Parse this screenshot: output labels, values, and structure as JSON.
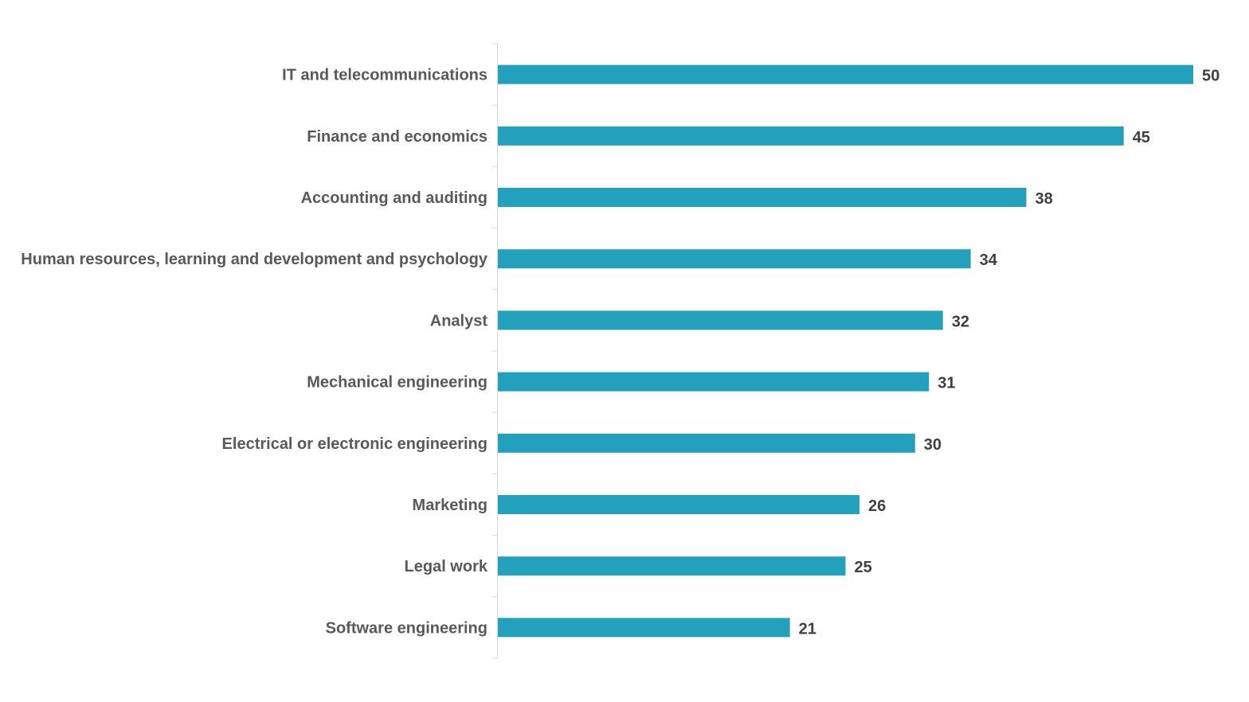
{
  "chart_data": {
    "type": "bar",
    "orientation": "horizontal",
    "categories": [
      "IT and telecommunications",
      "Finance and economics",
      "Accounting and auditing",
      "Human resources, learning and development and psychology",
      "Analyst",
      "Mechanical engineering",
      "Electrical or electronic engineering",
      "Marketing",
      "Legal work",
      "Software engineering"
    ],
    "values": [
      50,
      45,
      38,
      34,
      32,
      31,
      30,
      26,
      25,
      21
    ],
    "xlim": [
      0,
      50
    ],
    "grid": false,
    "data_labels": true,
    "bar_color": "#23a0bb",
    "axis_color": "#d9d9d9"
  }
}
